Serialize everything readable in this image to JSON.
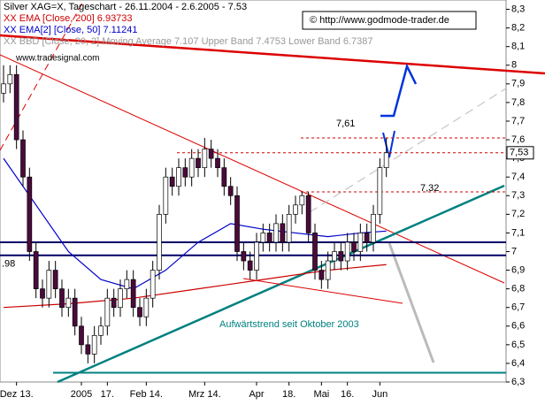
{
  "chart_data": {
    "type": "candlestick",
    "title": "Silver XAG=X, Tageschart - 26.11.2004 - 2.6.2005 - 7.53",
    "legend_lines": [
      "XX EMA [Close, 200] 6.93733",
      "XX EMA[2] [Close, 50] 7.11241",
      "XX BBD [Close, 20, 2] Moving Average 7.107 Upper Band 7.4753 Lower Band 6.7387"
    ],
    "copyright": "© http://www.godmode-trader.de",
    "source": "www.tradesignal.com",
    "annotation": "Aufwärtstrend seit Oktober 2003",
    "ylim": [
      6.3,
      8.35
    ],
    "yticks": [
      {
        "value": 6.3,
        "label": "6,3"
      },
      {
        "value": 6.4,
        "label": "6,4"
      },
      {
        "value": 6.5,
        "label": "6,5"
      },
      {
        "value": 6.6,
        "label": "6,6"
      },
      {
        "value": 6.7,
        "label": "6,7"
      },
      {
        "value": 6.8,
        "label": "6,8"
      },
      {
        "value": 6.9,
        "label": "6,9"
      },
      7,
      {
        "value": 7.1,
        "label": "7,1"
      },
      {
        "value": 7.2,
        "label": "7,2"
      },
      {
        "value": 7.3,
        "label": "7,3"
      },
      {
        "value": 7.4,
        "label": "7,4"
      },
      {
        "value": 7.5,
        "label": "7,5"
      },
      {
        "value": 7.6,
        "label": "7,6"
      },
      {
        "value": 7.7,
        "label": "7,7"
      },
      {
        "value": 7.8,
        "label": "7,8"
      },
      {
        "value": 7.9,
        "label": "7,9"
      },
      8,
      {
        "value": 8.1,
        "label": "8,1"
      },
      {
        "value": 8.2,
        "label": "8,2"
      },
      {
        "value": 8.3,
        "label": "8,3"
      }
    ],
    "xticks": [
      {
        "value": 2,
        "label": "Dez 13."
      },
      {
        "value": 12,
        "label": "2005"
      },
      {
        "value": 16,
        "label": "17."
      },
      {
        "value": 22,
        "label": "Feb 14."
      },
      {
        "value": 31,
        "label": "Mrz 14."
      },
      {
        "value": 39,
        "label": "Apr"
      },
      {
        "value": 44,
        "label": "18."
      },
      {
        "value": 49,
        "label": "Mai"
      },
      {
        "value": 53,
        "label": "16."
      },
      {
        "value": 58,
        "label": "Jun"
      }
    ],
    "xlim": [
      0,
      78
    ],
    "ohlc": [
      [
        7.85,
        8.0,
        7.8,
        7.9
      ],
      [
        7.9,
        8.0,
        7.85,
        7.95
      ],
      [
        7.95,
        8.0,
        7.55,
        7.6
      ],
      [
        7.6,
        7.65,
        7.35,
        7.4
      ],
      [
        7.4,
        7.45,
        6.95,
        7.0
      ],
      [
        7.0,
        7.05,
        6.75,
        6.8
      ],
      [
        6.8,
        6.85,
        6.7,
        6.75
      ],
      [
        6.75,
        6.95,
        6.7,
        6.9
      ],
      [
        6.9,
        6.95,
        6.75,
        6.8
      ],
      [
        6.8,
        6.85,
        6.65,
        6.7
      ],
      [
        6.7,
        6.8,
        6.65,
        6.75
      ],
      [
        6.75,
        6.8,
        6.55,
        6.6
      ],
      [
        6.6,
        6.65,
        6.45,
        6.5
      ],
      [
        6.5,
        6.55,
        6.4,
        6.45
      ],
      [
        6.45,
        6.6,
        6.4,
        6.55
      ],
      [
        6.55,
        6.65,
        6.5,
        6.6
      ],
      [
        6.6,
        6.8,
        6.55,
        6.75
      ],
      [
        6.75,
        6.8,
        6.65,
        6.7
      ],
      [
        6.7,
        6.85,
        6.65,
        6.8
      ],
      [
        6.8,
        6.9,
        6.75,
        6.85
      ],
      [
        6.85,
        6.9,
        6.65,
        6.7
      ],
      [
        6.7,
        6.75,
        6.6,
        6.65
      ],
      [
        6.65,
        6.8,
        6.6,
        6.75
      ],
      [
        6.75,
        6.95,
        6.7,
        6.9
      ],
      [
        6.9,
        7.25,
        6.85,
        7.2
      ],
      [
        7.2,
        7.45,
        7.15,
        7.4
      ],
      [
        7.4,
        7.45,
        7.3,
        7.35
      ],
      [
        7.35,
        7.5,
        7.3,
        7.45
      ],
      [
        7.45,
        7.5,
        7.35,
        7.4
      ],
      [
        7.4,
        7.55,
        7.35,
        7.5
      ],
      [
        7.5,
        7.55,
        7.4,
        7.45
      ],
      [
        7.45,
        7.61,
        7.4,
        7.55
      ],
      [
        7.55,
        7.6,
        7.45,
        7.5
      ],
      [
        7.5,
        7.55,
        7.4,
        7.45
      ],
      [
        7.45,
        7.5,
        7.3,
        7.35
      ],
      [
        7.35,
        7.4,
        7.25,
        7.3
      ],
      [
        7.3,
        7.35,
        6.95,
        7.0
      ],
      [
        7.0,
        7.05,
        6.9,
        6.95
      ],
      [
        6.95,
        7.0,
        6.85,
        6.9
      ],
      [
        6.9,
        7.1,
        6.85,
        7.05
      ],
      [
        7.05,
        7.15,
        7.0,
        7.1
      ],
      [
        7.1,
        7.15,
        7.0,
        7.05
      ],
      [
        7.05,
        7.2,
        7.0,
        7.15
      ],
      [
        7.15,
        7.2,
        7.0,
        7.05
      ],
      [
        7.05,
        7.25,
        7.0,
        7.2
      ],
      [
        7.2,
        7.3,
        7.15,
        7.25
      ],
      [
        7.25,
        7.32,
        7.2,
        7.3
      ],
      [
        7.3,
        7.32,
        7.05,
        7.1
      ],
      [
        7.1,
        7.15,
        6.85,
        6.9
      ],
      [
        6.9,
        6.95,
        6.8,
        6.85
      ],
      [
        6.85,
        7.0,
        6.8,
        6.95
      ],
      [
        6.95,
        7.05,
        6.9,
        7.0
      ],
      [
        7.0,
        7.05,
        6.9,
        6.95
      ],
      [
        6.95,
        7.1,
        6.9,
        7.05
      ],
      [
        7.05,
        7.1,
        6.95,
        7.0
      ],
      [
        7.0,
        7.15,
        6.95,
        7.1
      ],
      [
        7.1,
        7.15,
        7.0,
        7.05
      ],
      [
        7.05,
        7.25,
        7.0,
        7.2
      ],
      [
        7.2,
        7.5,
        7.15,
        7.45
      ],
      [
        7.45,
        7.61,
        7.4,
        7.53
      ]
    ],
    "series": [
      {
        "name": "EMA 200",
        "color": "#cc0000",
        "x": [
          0,
          10,
          20,
          30,
          40,
          50,
          59
        ],
        "values": [
          6.7,
          6.72,
          6.75,
          6.8,
          6.85,
          6.9,
          6.93
        ]
      },
      {
        "name": "EMA 50",
        "color": "#0000cc",
        "x": [
          0,
          5,
          10,
          15,
          20,
          25,
          30,
          35,
          40,
          45,
          50,
          55,
          59
        ],
        "values": [
          7.5,
          7.25,
          7.0,
          6.85,
          6.8,
          6.9,
          7.05,
          7.15,
          7.12,
          7.1,
          7.08,
          7.1,
          7.11
        ]
      }
    ],
    "hlines": [
      {
        "value": 7.61,
        "label": "7,61",
        "color": "#cc0000"
      },
      {
        "value": 7.53,
        "color": "#cc0000"
      },
      {
        "value": 7.32,
        "label": "7,32",
        "color": "#cc0000"
      },
      {
        "value": 7.05,
        "color": "#000066"
      },
      {
        "value": 6.98,
        "label": ".98",
        "color": "#000066"
      },
      {
        "value": 6.35,
        "color": "#008080"
      }
    ],
    "last_price": {
      "value": 7.53,
      "label": "7,53"
    }
  }
}
